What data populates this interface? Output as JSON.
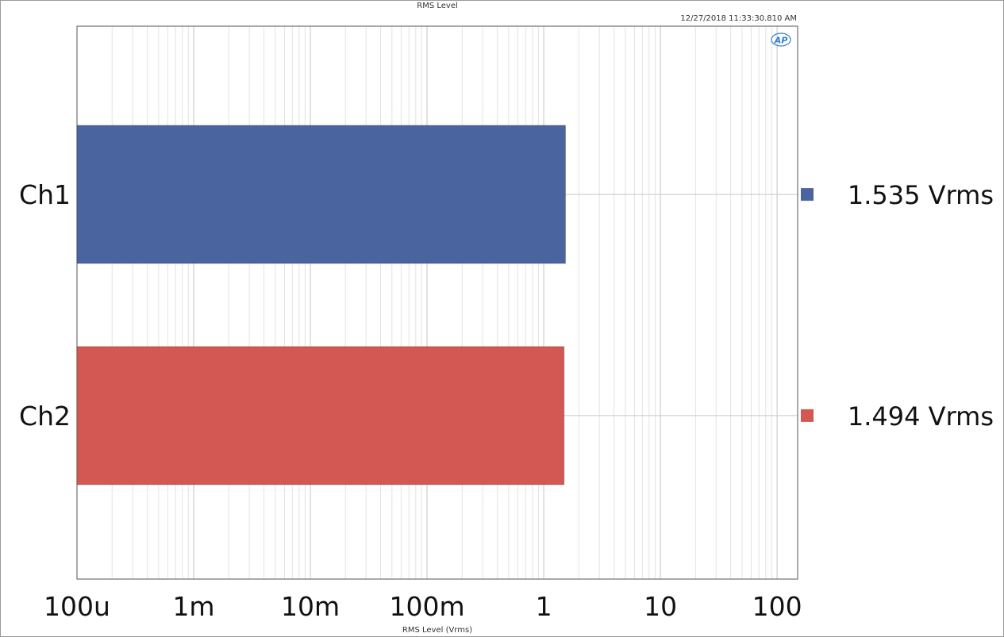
{
  "chart_data": {
    "type": "bar",
    "orientation": "horizontal",
    "title": "RMS Level",
    "timestamp": "12/27/2018 11:33:30.810 AM",
    "xlabel": "RMS Level (Vrms)",
    "xscale": "log",
    "xlim": [
      0.0001,
      150
    ],
    "xticks": [
      {
        "value": 0.0001,
        "label": "100u"
      },
      {
        "value": 0.001,
        "label": "1m"
      },
      {
        "value": 0.01,
        "label": "10m"
      },
      {
        "value": 0.1,
        "label": "100m"
      },
      {
        "value": 1,
        "label": "1"
      },
      {
        "value": 10,
        "label": "10"
      },
      {
        "value": 100,
        "label": "100"
      }
    ],
    "grid": true,
    "logo": "AP",
    "categories": [
      "Ch1",
      "Ch2"
    ],
    "series": [
      {
        "category": "Ch1",
        "value": 1.535,
        "unit": "Vrms",
        "display": "1.535  Vrms",
        "color": "#4a64a0"
      },
      {
        "category": "Ch2",
        "value": 1.494,
        "unit": "Vrms",
        "display": "1.494  Vrms",
        "color": "#d35752"
      }
    ]
  }
}
